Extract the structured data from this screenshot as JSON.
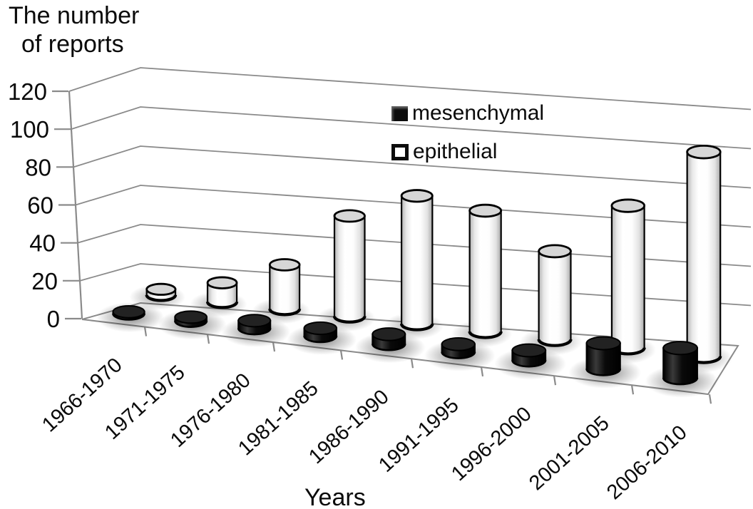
{
  "figure": {
    "title_line1": "The number",
    "title_line2": "of reports",
    "xlabel": "Years"
  },
  "legend": {
    "items": [
      {
        "label": "mesenchymal",
        "swatch": "filled-black-square"
      },
      {
        "label": "epithelial",
        "swatch": "open-white-square"
      }
    ]
  },
  "chart_data": {
    "type": "bar",
    "style": "3d-cylinder",
    "title": "The number of reports",
    "xlabel": "Years",
    "ylabel": "The number of reports",
    "categories": [
      "1966-1970",
      "1971-1975",
      "1976-1980",
      "1981-1985",
      "1986-1990",
      "1991-1995",
      "1996-2000",
      "2001-2005",
      "2006-2010"
    ],
    "series": [
      {
        "name": "mesenchymal",
        "color": "#0d0d0d",
        "values": [
          1,
          2,
          4,
          4,
          5,
          4,
          5,
          13,
          15
        ]
      },
      {
        "name": "epithelial",
        "color": "#ffffff",
        "values": [
          3,
          10,
          23,
          52,
          66,
          62,
          45,
          72,
          103
        ]
      }
    ],
    "ylim": [
      0,
      120
    ],
    "yticks": [
      0,
      20,
      40,
      60,
      80,
      100,
      120
    ],
    "grid": true,
    "legend_position": "top-center"
  },
  "colors": {
    "background": "#ffffff",
    "grid": "#8a8a8a",
    "bar_stroke": "#000000",
    "cylinder_top_light": "#d6d6d6",
    "cylinder_top_dark": "#222222",
    "shadow": "#000000"
  }
}
